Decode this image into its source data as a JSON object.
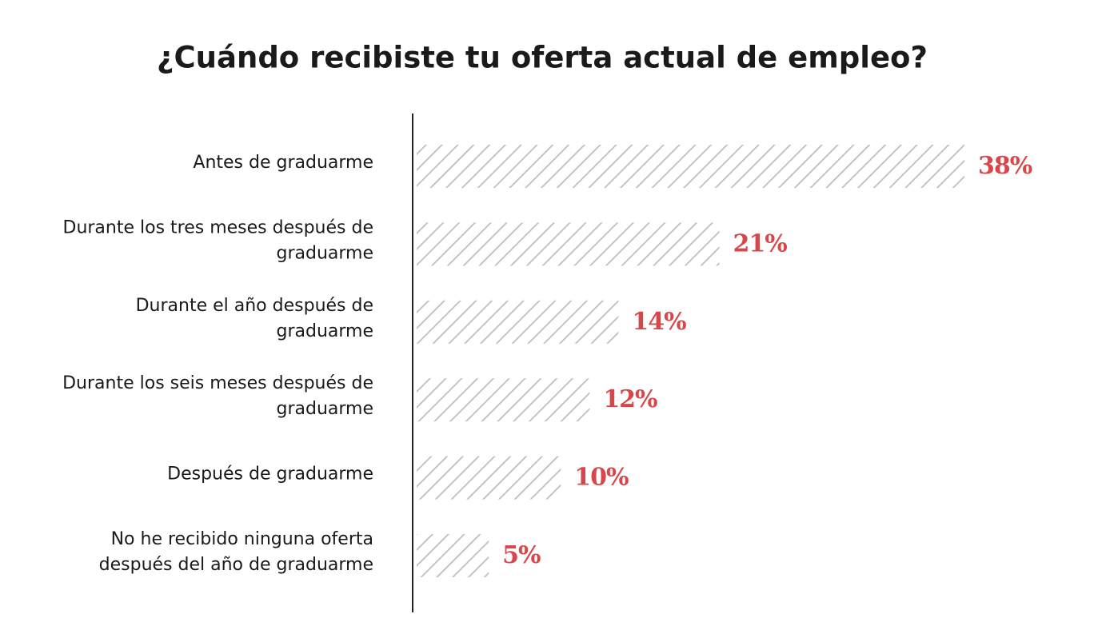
{
  "chart_data": {
    "type": "bar",
    "orientation": "horizontal",
    "title": "¿Cuándo recibiste tu oferta actual de empleo?",
    "categories": [
      "Antes de graduarme",
      "Durante los tres meses después de graduarme",
      "Durante el año después de graduarme",
      "Durante los seis meses después de graduarme",
      "Después de graduarme",
      "No he recibido ninguna oferta después del año de graduarme"
    ],
    "values": [
      38,
      21,
      14,
      12,
      10,
      5
    ],
    "value_labels": [
      "38%",
      "21%",
      "14%",
      "12%",
      "10%",
      "5%"
    ],
    "color": "#bdbdbd",
    "value_label_color": "#d9464a"
  }
}
